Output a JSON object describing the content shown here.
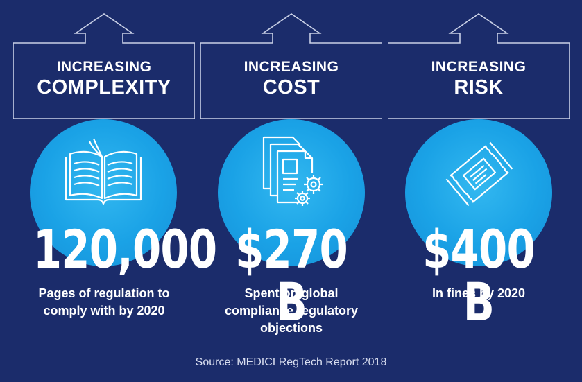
{
  "panels": [
    {
      "label_line1": "INCREASING",
      "label_line2": "COMPLEXITY",
      "icon": "open-book-icon",
      "stat": "120,000",
      "desc": [
        "Pages of regulation to",
        "comply with by 2020"
      ]
    },
    {
      "label_line1": "INCREASING",
      "label_line2": "COST",
      "icon": "documents-gears-icon",
      "stat": "$270 B",
      "desc": [
        "Spent on global",
        "compliance regulatory",
        "objections"
      ]
    },
    {
      "label_line1": "INCREASING",
      "label_line2": "RISK",
      "icon": "ticket-icon",
      "stat": "$400 B",
      "desc": [
        "In fines by 2020"
      ]
    }
  ],
  "source": "Source: MEDICI RegTech Report 2018",
  "colors": {
    "background": "#1b2c6b",
    "circle": "#1aa2e6",
    "text": "#ffffff"
  }
}
